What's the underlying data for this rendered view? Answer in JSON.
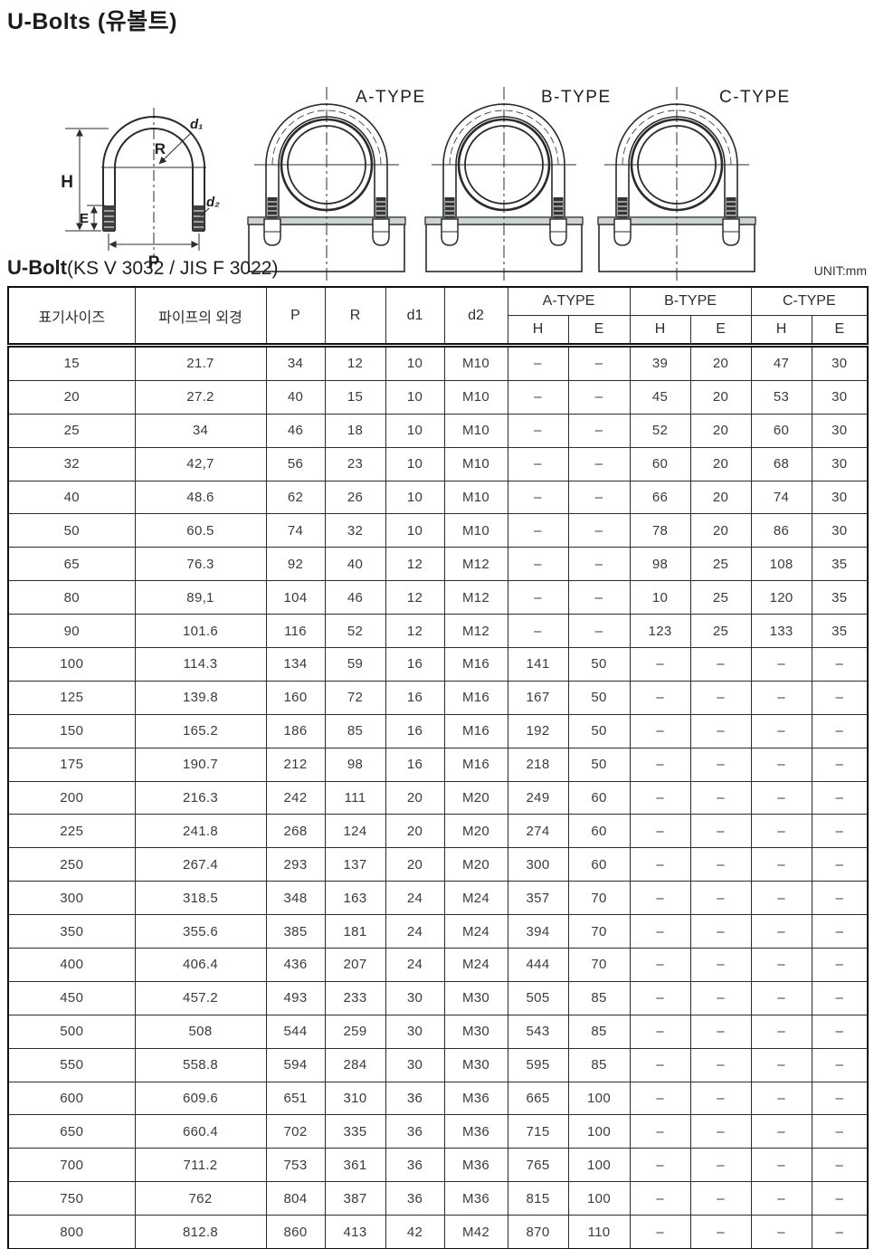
{
  "page": {
    "title": "U-Bolts (유볼트)",
    "subtitle": "U-Bolt",
    "subtitle_spec": "(KS V 3032 / JIS F 3022)",
    "unit_label": "UNIT:mm"
  },
  "diagram": {
    "types": [
      "A-TYPE",
      "B-TYPE",
      "C-TYPE"
    ],
    "labels": {
      "h": "H",
      "e": "E",
      "p": "P",
      "r": "R",
      "d1": "d₁",
      "d2": "d₂"
    },
    "colors": {
      "ink": "#2b2b2b",
      "plate_tint": "#ccd4cb",
      "plate_edge": "#30403a"
    }
  },
  "table": {
    "col_headers_rowspan": [
      "표기사이즈",
      "파이프의 외경",
      "P",
      "R",
      "d1",
      "d2"
    ],
    "group_headers": [
      "A-TYPE",
      "B-TYPE",
      "C-TYPE"
    ],
    "sub_headers": [
      "H",
      "E",
      "H",
      "E",
      "H",
      "E"
    ],
    "rows": [
      [
        "15",
        "21.7",
        "34",
        "12",
        "10",
        "M10",
        "–",
        "–",
        "39",
        "20",
        "47",
        "30"
      ],
      [
        "20",
        "27.2",
        "40",
        "15",
        "10",
        "M10",
        "–",
        "–",
        "45",
        "20",
        "53",
        "30"
      ],
      [
        "25",
        "34",
        "46",
        "18",
        "10",
        "M10",
        "–",
        "–",
        "52",
        "20",
        "60",
        "30"
      ],
      [
        "32",
        "42,7",
        "56",
        "23",
        "10",
        "M10",
        "–",
        "–",
        "60",
        "20",
        "68",
        "30"
      ],
      [
        "40",
        "48.6",
        "62",
        "26",
        "10",
        "M10",
        "–",
        "–",
        "66",
        "20",
        "74",
        "30"
      ],
      [
        "50",
        "60.5",
        "74",
        "32",
        "10",
        "M10",
        "–",
        "–",
        "78",
        "20",
        "86",
        "30"
      ],
      [
        "65",
        "76.3",
        "92",
        "40",
        "12",
        "M12",
        "–",
        "–",
        "98",
        "25",
        "108",
        "35"
      ],
      [
        "80",
        "89,1",
        "104",
        "46",
        "12",
        "M12",
        "–",
        "–",
        "10",
        "25",
        "120",
        "35"
      ],
      [
        "90",
        "101.6",
        "116",
        "52",
        "12",
        "M12",
        "–",
        "–",
        "123",
        "25",
        "133",
        "35"
      ],
      [
        "100",
        "114.3",
        "134",
        "59",
        "16",
        "M16",
        "141",
        "50",
        "–",
        "–",
        "–",
        "–"
      ],
      [
        "125",
        "139.8",
        "160",
        "72",
        "16",
        "M16",
        "167",
        "50",
        "–",
        "–",
        "–",
        "–"
      ],
      [
        "150",
        "165.2",
        "186",
        "85",
        "16",
        "M16",
        "192",
        "50",
        "–",
        "–",
        "–",
        "–"
      ],
      [
        "175",
        "190.7",
        "212",
        "98",
        "16",
        "M16",
        "218",
        "50",
        "–",
        "–",
        "–",
        "–"
      ],
      [
        "200",
        "216.3",
        "242",
        "111",
        "20",
        "M20",
        "249",
        "60",
        "–",
        "–",
        "–",
        "–"
      ],
      [
        "225",
        "241.8",
        "268",
        "124",
        "20",
        "M20",
        "274",
        "60",
        "–",
        "–",
        "–",
        "–"
      ],
      [
        "250",
        "267.4",
        "293",
        "137",
        "20",
        "M20",
        "300",
        "60",
        "–",
        "–",
        "–",
        "–"
      ],
      [
        "300",
        "318.5",
        "348",
        "163",
        "24",
        "M24",
        "357",
        "70",
        "–",
        "–",
        "–",
        "–"
      ],
      [
        "350",
        "355.6",
        "385",
        "181",
        "24",
        "M24",
        "394",
        "70",
        "–",
        "–",
        "–",
        "–"
      ],
      [
        "400",
        "406.4",
        "436",
        "207",
        "24",
        "M24",
        "444",
        "70",
        "–",
        "–",
        "–",
        "–"
      ],
      [
        "450",
        "457.2",
        "493",
        "233",
        "30",
        "M30",
        "505",
        "85",
        "–",
        "–",
        "–",
        "–"
      ],
      [
        "500",
        "508",
        "544",
        "259",
        "30",
        "M30",
        "543",
        "85",
        "–",
        "–",
        "–",
        "–"
      ],
      [
        "550",
        "558.8",
        "594",
        "284",
        "30",
        "M30",
        "595",
        "85",
        "–",
        "–",
        "–",
        "–"
      ],
      [
        "600",
        "609.6",
        "651",
        "310",
        "36",
        "M36",
        "665",
        "100",
        "–",
        "–",
        "–",
        "–"
      ],
      [
        "650",
        "660.4",
        "702",
        "335",
        "36",
        "M36",
        "715",
        "100",
        "–",
        "–",
        "–",
        "–"
      ],
      [
        "700",
        "711.2",
        "753",
        "361",
        "36",
        "M36",
        "765",
        "100",
        "–",
        "–",
        "–",
        "–"
      ],
      [
        "750",
        "762",
        "804",
        "387",
        "36",
        "M36",
        "815",
        "100",
        "–",
        "–",
        "–",
        "–"
      ],
      [
        "800",
        "812.8",
        "860",
        "413",
        "42",
        "M42",
        "870",
        "110",
        "–",
        "–",
        "–",
        "–"
      ]
    ]
  }
}
